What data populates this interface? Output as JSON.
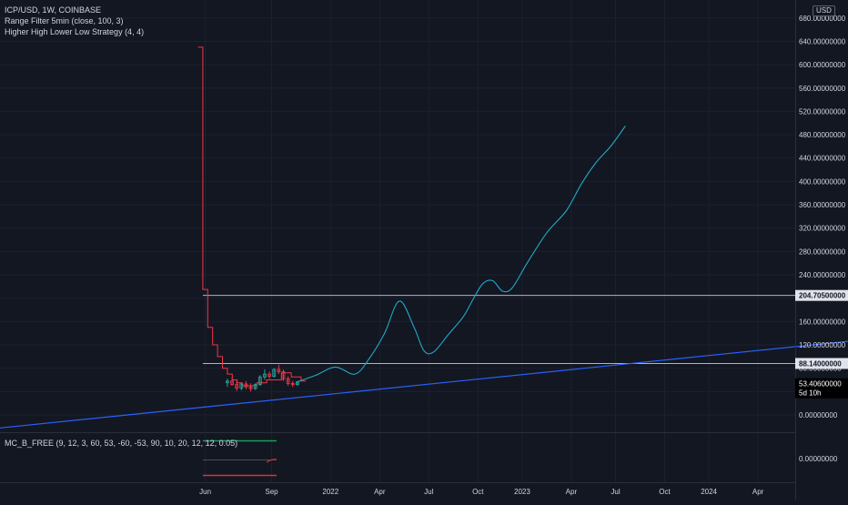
{
  "legend": {
    "symbol": "ICP/USD, 1W, COINBASE",
    "indicator1": "Range Filter  5min (close, 100, 3)",
    "indicator2": "Higher High Lower Low Strategy (4, 4)"
  },
  "sub_legend": "MC_B_FREE (9, 12, 3, 60, 53, -60, -53, 90, 10, 20, 12, 12, 0.05)",
  "currency": "USD",
  "colors": {
    "background": "#131722",
    "axis_text": "#d1d4dc",
    "range_filter": "#f23645",
    "candle_up": "#26a69a",
    "projection": "#22a8c4",
    "trend_line": "#2962ff",
    "level_line": "#b2b5be",
    "oscillator_green": "#1b9d5a",
    "oscillator_red": "#e0303a"
  },
  "chart_data": {
    "type": "line",
    "symbol": "ICP/USD",
    "interval": "1W",
    "exchange": "COINBASE",
    "ylim": [
      -60,
      690
    ],
    "y_ticks": [
      "0.00000000",
      "40.00000000",
      "80.00000000",
      "120.00000000",
      "160.00000000",
      "200.00000000",
      "240.00000000",
      "280.00000000",
      "320.00000000",
      "360.00000000",
      "400.00000000",
      "440.00000000",
      "480.00000000",
      "520.00000000",
      "560.00000000",
      "600.00000000",
      "640.00000000",
      "680.00000000"
    ],
    "x_ticks": [
      "Jun",
      "Sep",
      "2022",
      "Apr",
      "Jul",
      "Oct",
      "2023",
      "Apr",
      "Jul",
      "Oct",
      "2024",
      "Apr"
    ],
    "price_labels": [
      {
        "value": 204.705,
        "text": "204.70500000",
        "style": "white"
      },
      {
        "value": 88.14,
        "text": "88.14000000",
        "style": "white"
      },
      {
        "value": 53.406,
        "text": "53.40600000",
        "sub": "5d 10h",
        "style": "dark"
      }
    ],
    "horizontal_levels": [
      204.705,
      88.14
    ],
    "candles": [
      {
        "o": 55,
        "h": 62,
        "l": 48,
        "c": 58
      },
      {
        "o": 58,
        "h": 64,
        "l": 50,
        "c": 52
      },
      {
        "o": 52,
        "h": 58,
        "l": 41,
        "c": 46
      },
      {
        "o": 46,
        "h": 55,
        "l": 42,
        "c": 53
      },
      {
        "o": 53,
        "h": 58,
        "l": 44,
        "c": 48
      },
      {
        "o": 48,
        "h": 54,
        "l": 40,
        "c": 45
      },
      {
        "o": 45,
        "h": 54,
        "l": 43,
        "c": 52
      },
      {
        "o": 52,
        "h": 68,
        "l": 50,
        "c": 65
      },
      {
        "o": 65,
        "h": 78,
        "l": 60,
        "c": 70
      },
      {
        "o": 70,
        "h": 74,
        "l": 62,
        "c": 66
      },
      {
        "o": 66,
        "h": 80,
        "l": 64,
        "c": 78
      },
      {
        "o": 78,
        "h": 86,
        "l": 70,
        "c": 74
      },
      {
        "o": 74,
        "h": 78,
        "l": 58,
        "c": 62
      },
      {
        "o": 62,
        "h": 66,
        "l": 50,
        "c": 54
      },
      {
        "o": 54,
        "h": 58,
        "l": 48,
        "c": 52
      },
      {
        "o": 52,
        "h": 58,
        "l": 50,
        "c": 56
      }
    ],
    "range_filter": {
      "name": "Range Filter",
      "points": [
        [
          0,
          630
        ],
        [
          1,
          630
        ],
        [
          1,
          215
        ],
        [
          2,
          215
        ],
        [
          2,
          150
        ],
        [
          3,
          150
        ],
        [
          3,
          120
        ],
        [
          4,
          120
        ],
        [
          4,
          100
        ],
        [
          5,
          100
        ],
        [
          5,
          80
        ],
        [
          6,
          80
        ],
        [
          6,
          70
        ],
        [
          7,
          70
        ],
        [
          7,
          60
        ],
        [
          8,
          60
        ],
        [
          8,
          55
        ],
        [
          9,
          55
        ],
        [
          9,
          50
        ],
        [
          12,
          50
        ],
        [
          12,
          55
        ],
        [
          14,
          55
        ],
        [
          14,
          60
        ],
        [
          17,
          60
        ],
        [
          17,
          72
        ],
        [
          19,
          72
        ],
        [
          19,
          65
        ],
        [
          21,
          65
        ],
        [
          21,
          58
        ],
        [
          22,
          58
        ]
      ]
    },
    "projection": {
      "name": "Projection",
      "points": [
        [
          20,
          56
        ],
        [
          24,
          68
        ],
        [
          28,
          82
        ],
        [
          32,
          70
        ],
        [
          35,
          98
        ],
        [
          38,
          140
        ],
        [
          41,
          195
        ],
        [
          44,
          150
        ],
        [
          46,
          110
        ],
        [
          48,
          108
        ],
        [
          51,
          138
        ],
        [
          54,
          168
        ],
        [
          56,
          198
        ],
        [
          58,
          225
        ],
        [
          60,
          230
        ],
        [
          62,
          212
        ],
        [
          64,
          218
        ],
        [
          67,
          260
        ],
        [
          71,
          312
        ],
        [
          75,
          350
        ],
        [
          78,
          395
        ],
        [
          81,
          432
        ],
        [
          84,
          460
        ],
        [
          87,
          495
        ]
      ]
    },
    "trend_line": {
      "name": "Trend Line",
      "from": [
        -55,
        -35
      ],
      "to": [
        224,
        205
      ]
    },
    "x_tick_positions": [
      1.5,
      15,
      27,
      37,
      47,
      57,
      66,
      76,
      85,
      95,
      104,
      114
    ]
  }
}
